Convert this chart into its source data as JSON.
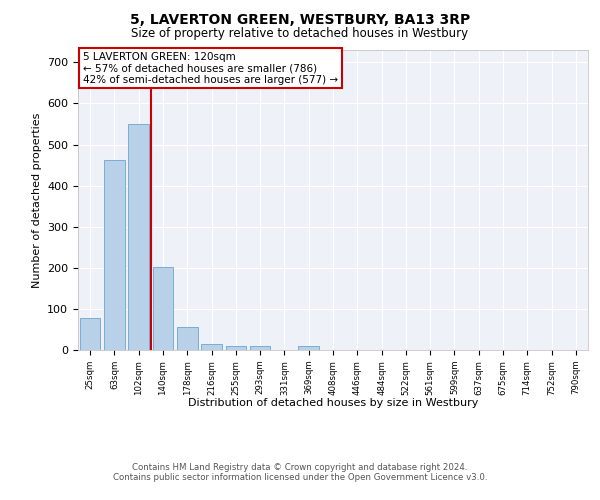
{
  "title": "5, LAVERTON GREEN, WESTBURY, BA13 3RP",
  "subtitle": "Size of property relative to detached houses in Westbury",
  "xlabel": "Distribution of detached houses by size in Westbury",
  "ylabel": "Number of detached properties",
  "bar_color": "#b8d0e8",
  "bar_edge_color": "#7aadd4",
  "annotation_line_color": "#cc0000",
  "annotation_box_color": "#cc0000",
  "annotation_text": "5 LAVERTON GREEN: 120sqm\n← 57% of detached houses are smaller (786)\n42% of semi-detached houses are larger (577) →",
  "categories": [
    "25sqm",
    "63sqm",
    "102sqm",
    "140sqm",
    "178sqm",
    "216sqm",
    "255sqm",
    "293sqm",
    "331sqm",
    "369sqm",
    "408sqm",
    "446sqm",
    "484sqm",
    "522sqm",
    "561sqm",
    "599sqm",
    "637sqm",
    "675sqm",
    "714sqm",
    "752sqm",
    "790sqm"
  ],
  "values": [
    78,
    463,
    550,
    203,
    57,
    15,
    9,
    9,
    0,
    9,
    0,
    0,
    0,
    0,
    0,
    0,
    0,
    0,
    0,
    0,
    0
  ],
  "ylim": [
    0,
    730
  ],
  "yticks": [
    0,
    100,
    200,
    300,
    400,
    500,
    600,
    700
  ],
  "line_bar_index": 2,
  "footer_line1": "Contains HM Land Registry data © Crown copyright and database right 2024.",
  "footer_line2": "Contains public sector information licensed under the Open Government Licence v3.0.",
  "background_color": "#eef2f8",
  "grid_color": "#ffffff",
  "fig_bg_color": "#ffffff"
}
